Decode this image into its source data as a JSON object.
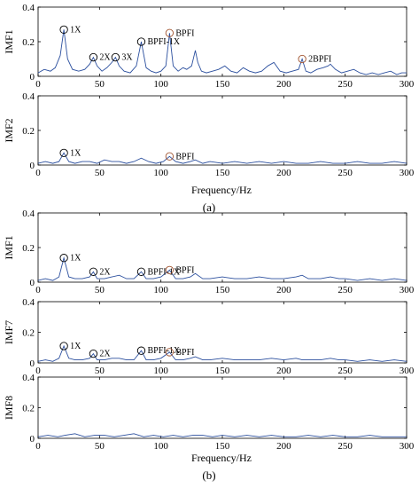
{
  "figure": {
    "xlabel": "Frequency/Hz",
    "caption_a": "(a)",
    "caption_b": "(b)"
  },
  "chart_data": [
    {
      "type": "line",
      "group": "a",
      "ylabel": "IMF1",
      "xlim": [
        0,
        300
      ],
      "ylim": [
        0,
        0.4
      ],
      "xticks": [
        0,
        50,
        100,
        150,
        200,
        250,
        300
      ],
      "yticks": [
        0,
        0.2,
        0.4
      ],
      "series": [
        {
          "color": "#2b4f9e",
          "x": [
            0,
            5,
            10,
            14,
            18,
            21,
            24,
            28,
            33,
            38,
            42,
            45,
            48,
            52,
            56,
            60,
            63,
            66,
            70,
            75,
            80,
            84,
            88,
            92,
            96,
            100,
            104,
            107,
            110,
            114,
            118,
            121,
            125,
            128,
            130,
            133,
            137,
            142,
            147,
            152,
            157,
            162,
            167,
            172,
            177,
            182,
            187,
            192,
            197,
            202,
            207,
            212,
            215,
            218,
            222,
            227,
            232,
            236,
            238,
            242,
            247,
            252,
            257,
            262,
            267,
            272,
            277,
            282,
            287,
            292,
            296,
            300
          ],
          "y": [
            0.02,
            0.04,
            0.03,
            0.05,
            0.12,
            0.27,
            0.1,
            0.04,
            0.03,
            0.04,
            0.07,
            0.11,
            0.06,
            0.03,
            0.05,
            0.08,
            0.11,
            0.06,
            0.03,
            0.02,
            0.06,
            0.2,
            0.05,
            0.03,
            0.02,
            0.03,
            0.06,
            0.25,
            0.06,
            0.03,
            0.05,
            0.04,
            0.06,
            0.15,
            0.08,
            0.03,
            0.02,
            0.03,
            0.04,
            0.06,
            0.03,
            0.02,
            0.05,
            0.03,
            0.02,
            0.03,
            0.06,
            0.08,
            0.03,
            0.02,
            0.03,
            0.04,
            0.1,
            0.03,
            0.02,
            0.04,
            0.05,
            0.06,
            0.07,
            0.04,
            0.02,
            0.03,
            0.04,
            0.02,
            0.01,
            0.02,
            0.01,
            0.02,
            0.03,
            0.01,
            0.02,
            0.02
          ]
        }
      ],
      "annotations": [
        {
          "text": "1X",
          "x": 21,
          "y": 0.27,
          "color": "#000000"
        },
        {
          "text": "2X",
          "x": 45,
          "y": 0.11,
          "color": "#000000"
        },
        {
          "text": "3X",
          "x": 63,
          "y": 0.11,
          "color": "#000000"
        },
        {
          "text": "BPFI-1X",
          "x": 84,
          "y": 0.2,
          "color": "#000000"
        },
        {
          "text": "BPFI",
          "x": 107,
          "y": 0.25,
          "color": "#a0522d"
        },
        {
          "text": "2BPFI",
          "x": 215,
          "y": 0.1,
          "color": "#a0522d"
        }
      ]
    },
    {
      "type": "line",
      "group": "a",
      "ylabel": "IMF2",
      "xlim": [
        0,
        300
      ],
      "ylim": [
        0,
        0.4
      ],
      "xticks": [
        0,
        50,
        100,
        150,
        200,
        250,
        300
      ],
      "yticks": [
        0,
        0.2,
        0.4
      ],
      "series": [
        {
          "color": "#2b4f9e",
          "x": [
            0,
            6,
            12,
            17,
            21,
            25,
            30,
            36,
            42,
            48,
            54,
            60,
            66,
            72,
            78,
            84,
            90,
            96,
            102,
            107,
            112,
            118,
            124,
            128,
            134,
            140,
            150,
            160,
            170,
            180,
            190,
            200,
            210,
            220,
            230,
            240,
            250,
            260,
            270,
            280,
            290,
            300
          ],
          "y": [
            0.01,
            0.02,
            0.01,
            0.02,
            0.07,
            0.02,
            0.01,
            0.02,
            0.02,
            0.01,
            0.03,
            0.02,
            0.02,
            0.01,
            0.02,
            0.04,
            0.02,
            0.01,
            0.02,
            0.05,
            0.02,
            0.01,
            0.02,
            0.03,
            0.01,
            0.02,
            0.01,
            0.02,
            0.01,
            0.02,
            0.01,
            0.02,
            0.01,
            0.01,
            0.02,
            0.01,
            0.01,
            0.02,
            0.01,
            0.01,
            0.02,
            0.01
          ]
        }
      ],
      "annotations": [
        {
          "text": "1X",
          "x": 21,
          "y": 0.07,
          "color": "#000000"
        },
        {
          "text": "BPFI",
          "x": 107,
          "y": 0.05,
          "color": "#a0522d"
        }
      ]
    },
    {
      "type": "line",
      "group": "b",
      "ylabel": "IMF1",
      "xlim": [
        0,
        300
      ],
      "ylim": [
        0,
        0.4
      ],
      "xticks": [
        0,
        50,
        100,
        150,
        200,
        250,
        300
      ],
      "yticks": [
        0,
        0.2,
        0.4
      ],
      "series": [
        {
          "color": "#2b4f9e",
          "x": [
            0,
            6,
            12,
            17,
            21,
            25,
            30,
            36,
            42,
            45,
            48,
            54,
            60,
            66,
            72,
            78,
            84,
            88,
            94,
            100,
            107,
            112,
            118,
            124,
            128,
            134,
            140,
            150,
            160,
            170,
            180,
            190,
            200,
            210,
            215,
            220,
            230,
            238,
            245,
            250,
            260,
            270,
            280,
            290,
            300
          ],
          "y": [
            0.01,
            0.02,
            0.01,
            0.03,
            0.14,
            0.03,
            0.02,
            0.02,
            0.03,
            0.06,
            0.02,
            0.02,
            0.03,
            0.04,
            0.02,
            0.02,
            0.06,
            0.02,
            0.02,
            0.03,
            0.07,
            0.02,
            0.02,
            0.03,
            0.05,
            0.02,
            0.02,
            0.03,
            0.02,
            0.02,
            0.03,
            0.02,
            0.02,
            0.03,
            0.04,
            0.02,
            0.02,
            0.03,
            0.02,
            0.02,
            0.01,
            0.02,
            0.01,
            0.02,
            0.01
          ]
        }
      ],
      "annotations": [
        {
          "text": "1X",
          "x": 21,
          "y": 0.14,
          "color": "#000000"
        },
        {
          "text": "2X",
          "x": 45,
          "y": 0.06,
          "color": "#000000"
        },
        {
          "text": "BPFI-1X",
          "x": 84,
          "y": 0.06,
          "color": "#000000"
        },
        {
          "text": "BPFI",
          "x": 107,
          "y": 0.07,
          "color": "#a0522d"
        }
      ]
    },
    {
      "type": "line",
      "group": "b",
      "ylabel": "IMF7",
      "xlim": [
        0,
        300
      ],
      "ylim": [
        0,
        0.4
      ],
      "xticks": [
        0,
        50,
        100,
        150,
        200,
        250,
        300
      ],
      "yticks": [
        0,
        0.2,
        0.4
      ],
      "series": [
        {
          "color": "#2b4f9e",
          "x": [
            0,
            6,
            12,
            17,
            21,
            25,
            30,
            36,
            42,
            45,
            48,
            54,
            60,
            66,
            72,
            78,
            84,
            88,
            94,
            100,
            107,
            112,
            118,
            124,
            128,
            134,
            140,
            150,
            160,
            170,
            180,
            190,
            200,
            210,
            215,
            220,
            230,
            238,
            245,
            250,
            260,
            270,
            280,
            290,
            300
          ],
          "y": [
            0.01,
            0.02,
            0.01,
            0.03,
            0.11,
            0.03,
            0.02,
            0.02,
            0.03,
            0.06,
            0.02,
            0.02,
            0.03,
            0.03,
            0.02,
            0.02,
            0.08,
            0.02,
            0.02,
            0.03,
            0.07,
            0.02,
            0.02,
            0.03,
            0.04,
            0.02,
            0.02,
            0.03,
            0.02,
            0.02,
            0.02,
            0.03,
            0.02,
            0.03,
            0.02,
            0.02,
            0.02,
            0.03,
            0.02,
            0.02,
            0.01,
            0.02,
            0.01,
            0.02,
            0.01
          ]
        }
      ],
      "annotations": [
        {
          "text": "1X",
          "x": 21,
          "y": 0.11,
          "color": "#000000"
        },
        {
          "text": "2X",
          "x": 45,
          "y": 0.06,
          "color": "#000000"
        },
        {
          "text": "BPFI-1X",
          "x": 84,
          "y": 0.08,
          "color": "#000000"
        },
        {
          "text": "BPFI",
          "x": 107,
          "y": 0.07,
          "color": "#a0522d"
        }
      ]
    },
    {
      "type": "line",
      "group": "b",
      "ylabel": "IMF8",
      "xlim": [
        0,
        300
      ],
      "ylim": [
        0,
        0.4
      ],
      "xticks": [
        0,
        50,
        100,
        150,
        200,
        250,
        300
      ],
      "yticks": [
        0,
        0.2,
        0.4
      ],
      "series": [
        {
          "color": "#2b4f9e",
          "x": [
            0,
            8,
            16,
            22,
            30,
            38,
            46,
            54,
            62,
            70,
            78,
            86,
            94,
            102,
            110,
            118,
            126,
            134,
            142,
            150,
            160,
            170,
            180,
            190,
            200,
            210,
            220,
            230,
            240,
            250,
            260,
            270,
            280,
            290,
            300
          ],
          "y": [
            0.01,
            0.02,
            0.01,
            0.02,
            0.03,
            0.01,
            0.02,
            0.02,
            0.01,
            0.02,
            0.03,
            0.01,
            0.02,
            0.01,
            0.02,
            0.01,
            0.02,
            0.02,
            0.01,
            0.02,
            0.01,
            0.02,
            0.01,
            0.02,
            0.01,
            0.01,
            0.02,
            0.01,
            0.02,
            0.01,
            0.01,
            0.02,
            0.01,
            0.01,
            0.01
          ]
        }
      ],
      "annotations": []
    }
  ]
}
